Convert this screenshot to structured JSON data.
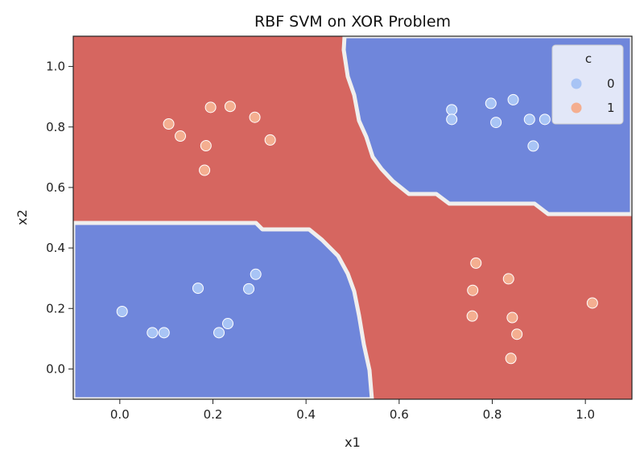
{
  "chart_data": {
    "type": "scatter",
    "title": "RBF SVM on XOR Problem",
    "xlabel": "x1",
    "ylabel": "x2",
    "xlim": [
      -0.1,
      1.1
    ],
    "ylim": [
      -0.1,
      1.1
    ],
    "xticks": [
      "0.0",
      "0.2",
      "0.4",
      "0.6",
      "0.8",
      "1.0"
    ],
    "yticks": [
      "0.0",
      "0.2",
      "0.4",
      "0.6",
      "0.8",
      "1.0"
    ],
    "grid": false,
    "legend": {
      "title": "c",
      "placement": "top-right",
      "entries": [
        "0",
        "1"
      ]
    },
    "decision_regions": {
      "class_0_color": "#6f86db",
      "class_1_color": "#d66660",
      "boundary_color": "#f0efee",
      "class_0_region": "bottom-left and top-right quadrants",
      "class_1_region": "top-left and bottom-right quadrants"
    },
    "series": [
      {
        "name": "0",
        "color": "#a8c4f5",
        "points": [
          [
            0.005,
            0.19
          ],
          [
            0.07,
            0.12
          ],
          [
            0.095,
            0.12
          ],
          [
            0.168,
            0.267
          ],
          [
            0.213,
            0.12
          ],
          [
            0.232,
            0.15
          ],
          [
            0.277,
            0.265
          ],
          [
            0.292,
            0.313
          ],
          [
            0.713,
            0.857
          ],
          [
            0.713,
            0.825
          ],
          [
            0.797,
            0.878
          ],
          [
            0.808,
            0.815
          ],
          [
            0.845,
            0.89
          ],
          [
            0.88,
            0.825
          ],
          [
            0.888,
            0.737
          ],
          [
            0.913,
            0.825
          ]
        ]
      },
      {
        "name": "1",
        "color": "#f4ae90",
        "points": [
          [
            0.105,
            0.81
          ],
          [
            0.13,
            0.77
          ],
          [
            0.182,
            0.657
          ],
          [
            0.185,
            0.738
          ],
          [
            0.195,
            0.865
          ],
          [
            0.237,
            0.868
          ],
          [
            0.29,
            0.832
          ],
          [
            0.323,
            0.757
          ],
          [
            0.757,
            0.175
          ],
          [
            0.758,
            0.26
          ],
          [
            0.765,
            0.35
          ],
          [
            0.835,
            0.298
          ],
          [
            0.84,
            0.035
          ],
          [
            0.843,
            0.17
          ],
          [
            0.853,
            0.115
          ],
          [
            1.015,
            0.218
          ]
        ]
      }
    ]
  }
}
